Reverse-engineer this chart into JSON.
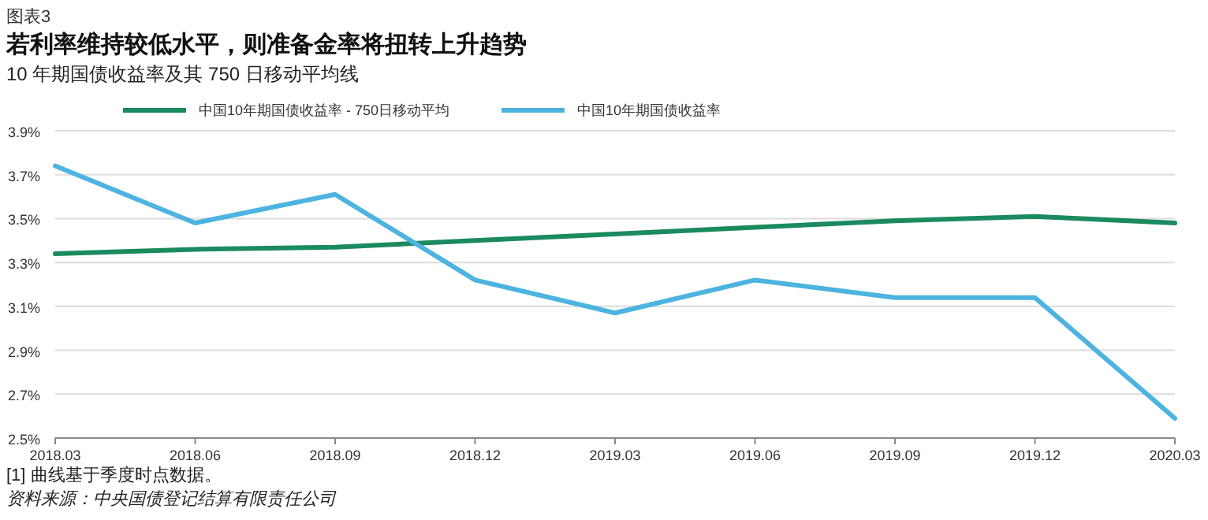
{
  "chart_data": {
    "type": "line",
    "title": "若利率维持较低水平，则准备金率将扭转上升趋势",
    "subtitle": "10 年期国债收益率及其 750 日移动平均线",
    "annotations": [
      "图表3",
      "[1] 曲线基于季度时点数据。",
      "资料来源：中央国债登记结算有限责任公司"
    ],
    "categories": [
      "2018.03",
      "2018.06",
      "2018.09",
      "2018.12",
      "2019.03",
      "2019.06",
      "2019.09",
      "2019.12",
      "2020.03"
    ],
    "series": [
      {
        "name": "中国10年期国债收益率 - 750日移动平均",
        "color": "#1b8a5f",
        "values": [
          3.34,
          3.36,
          3.37,
          3.4,
          3.43,
          3.46,
          3.49,
          3.51,
          3.48
        ]
      },
      {
        "name": "中国10年期国债收益率",
        "color": "#4db3e0",
        "values": [
          3.74,
          3.48,
          3.61,
          3.22,
          3.07,
          3.22,
          3.14,
          3.14,
          2.59
        ]
      }
    ],
    "ylim": [
      2.5,
      3.9
    ],
    "yticks": [
      {
        "value": 2.5,
        "label": "2.5%"
      },
      {
        "value": 2.7,
        "label": "2.7%"
      },
      {
        "value": 2.9,
        "label": "2.9%"
      },
      {
        "value": 3.1,
        "label": "3.1%"
      },
      {
        "value": 3.3,
        "label": "3.3%"
      },
      {
        "value": 3.5,
        "label": "3.5%"
      },
      {
        "value": 3.7,
        "label": "3.7%"
      },
      {
        "value": 3.9,
        "label": "3.9%"
      }
    ],
    "grid": "y",
    "legend": "top",
    "line_style": "solid",
    "marker": "none"
  }
}
